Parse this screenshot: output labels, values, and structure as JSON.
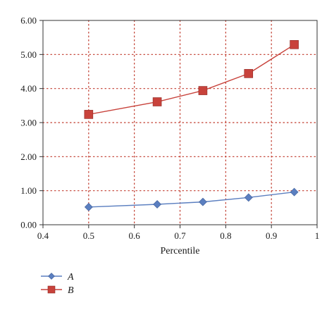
{
  "chart_data": {
    "type": "line",
    "title": "",
    "xlabel": "Percentile",
    "ylabel": "",
    "xlim": [
      0.4,
      1.0
    ],
    "ylim": [
      0,
      6
    ],
    "xticks": [
      0.4,
      0.5,
      0.6,
      0.7,
      0.8,
      0.9,
      1.0
    ],
    "xtick_labels": [
      "0.4",
      "0.5",
      "0.6",
      "0.7",
      "0.8",
      "0.9",
      "1"
    ],
    "yticks": [
      0,
      1,
      2,
      3,
      4,
      5,
      6
    ],
    "ytick_labels": [
      "0.00",
      "1.00",
      "2.00",
      "3.00",
      "4.00",
      "5.00",
      "6.00"
    ],
    "grid": true,
    "legend": "bottom-left",
    "x": [
      0.5,
      0.65,
      0.75,
      0.85,
      0.95
    ],
    "series": [
      {
        "name": "A",
        "values": [
          0.52,
          0.6,
          0.67,
          0.8,
          0.96
        ],
        "color": "#5b7fc0",
        "marker": "diamond"
      },
      {
        "name": "B",
        "values": [
          3.24,
          3.61,
          3.94,
          4.44,
          5.29
        ],
        "color": "#c8423b",
        "marker": "square"
      }
    ]
  }
}
